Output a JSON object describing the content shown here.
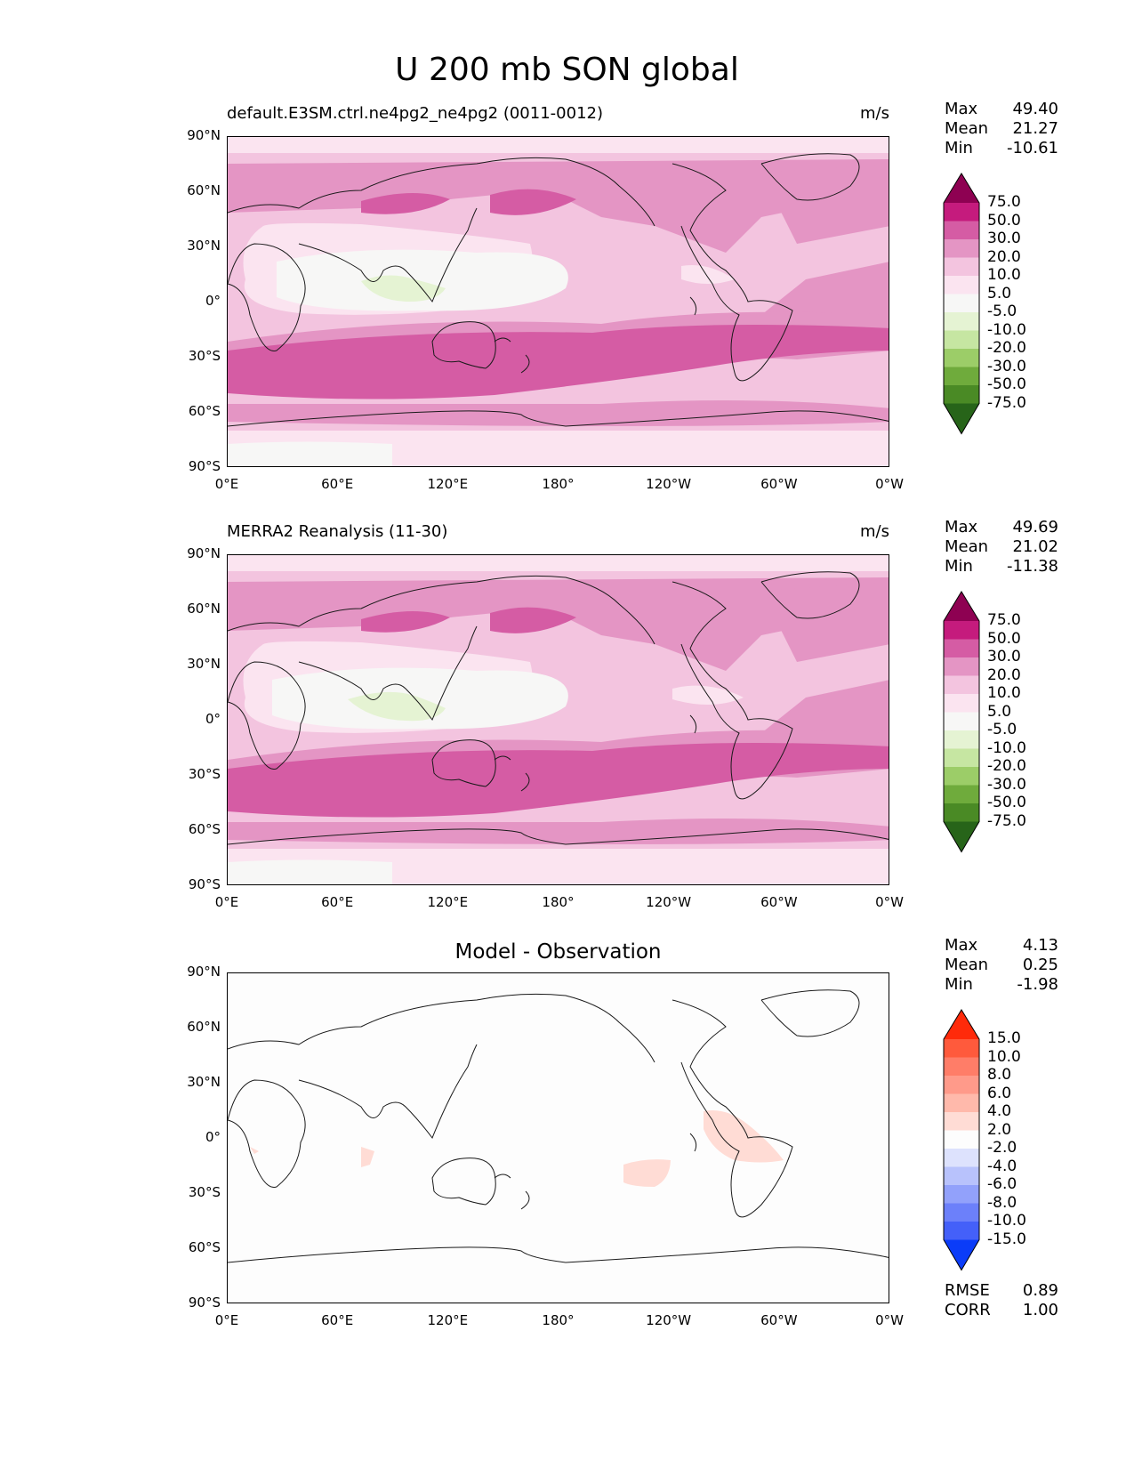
{
  "figure": {
    "title": "U 200 mb SON global"
  },
  "lat_ticks": [
    "90°N",
    "60°N",
    "30°N",
    "0°",
    "30°S",
    "60°S",
    "90°S"
  ],
  "lon_ticks": [
    "0°E",
    "60°E",
    "120°E",
    "180°",
    "120°W",
    "60°W",
    "0°W"
  ],
  "panels": [
    {
      "title": "default.E3SM.ctrl.ne4pg2_ne4pg2 (0011-0012)",
      "units": "m/s",
      "stats": {
        "max_label": "Max",
        "max": "49.40",
        "mean_label": "Mean",
        "mean": "21.27",
        "min_label": "Min",
        "min": "-10.61"
      },
      "colorbar": {
        "levels": [
          "75.0",
          "50.0",
          "30.0",
          "20.0",
          "10.0",
          "5.0",
          "-5.0",
          "-10.0",
          "-20.0",
          "-30.0",
          "-50.0",
          "-75.0"
        ],
        "colors": [
          "#8e0152",
          "#c51b7d",
          "#d55ca4",
          "#e495c4",
          "#f3c4df",
          "#fbe4f0",
          "#f7f7f6",
          "#e5f3d3",
          "#c6e6a2",
          "#9ccd68",
          "#6fab3c",
          "#4a8a25",
          "#276419"
        ]
      }
    },
    {
      "title": "MERRA2 Reanalysis (11-30)",
      "units": "m/s",
      "stats": {
        "max_label": "Max",
        "max": "49.69",
        "mean_label": "Mean",
        "mean": "21.02",
        "min_label": "Min",
        "min": "-11.38"
      },
      "colorbar": {
        "levels": [
          "75.0",
          "50.0",
          "30.0",
          "20.0",
          "10.0",
          "5.0",
          "-5.0",
          "-10.0",
          "-20.0",
          "-30.0",
          "-50.0",
          "-75.0"
        ],
        "colors": [
          "#8e0152",
          "#c51b7d",
          "#d55ca4",
          "#e495c4",
          "#f3c4df",
          "#fbe4f0",
          "#f7f7f6",
          "#e5f3d3",
          "#c6e6a2",
          "#9ccd68",
          "#6fab3c",
          "#4a8a25",
          "#276419"
        ]
      }
    },
    {
      "title": "Model - Observation",
      "units": "",
      "stats": {
        "max_label": "Max",
        "max": "4.13",
        "mean_label": "Mean",
        "mean": "0.25",
        "min_label": "Min",
        "min": "-1.98"
      },
      "colorbar": {
        "levels": [
          "15.0",
          "10.0",
          "8.0",
          "6.0",
          "4.0",
          "2.0",
          "-2.0",
          "-4.0",
          "-6.0",
          "-8.0",
          "-10.0",
          "-15.0"
        ],
        "colors": [
          "#ff2a0a",
          "#ff5a3c",
          "#ff7d68",
          "#ff9a8a",
          "#ffb9ab",
          "#ffdcd5",
          "#fdfdfd",
          "#dde2fd",
          "#b8c2fc",
          "#92a1fb",
          "#6c80fa",
          "#4460f9",
          "#0b3cf8"
        ]
      },
      "rmse_label": "RMSE",
      "rmse": "0.89",
      "corr_label": "CORR",
      "corr": "1.00"
    }
  ],
  "colors": {
    "land_outline": "#1a1a1a"
  }
}
